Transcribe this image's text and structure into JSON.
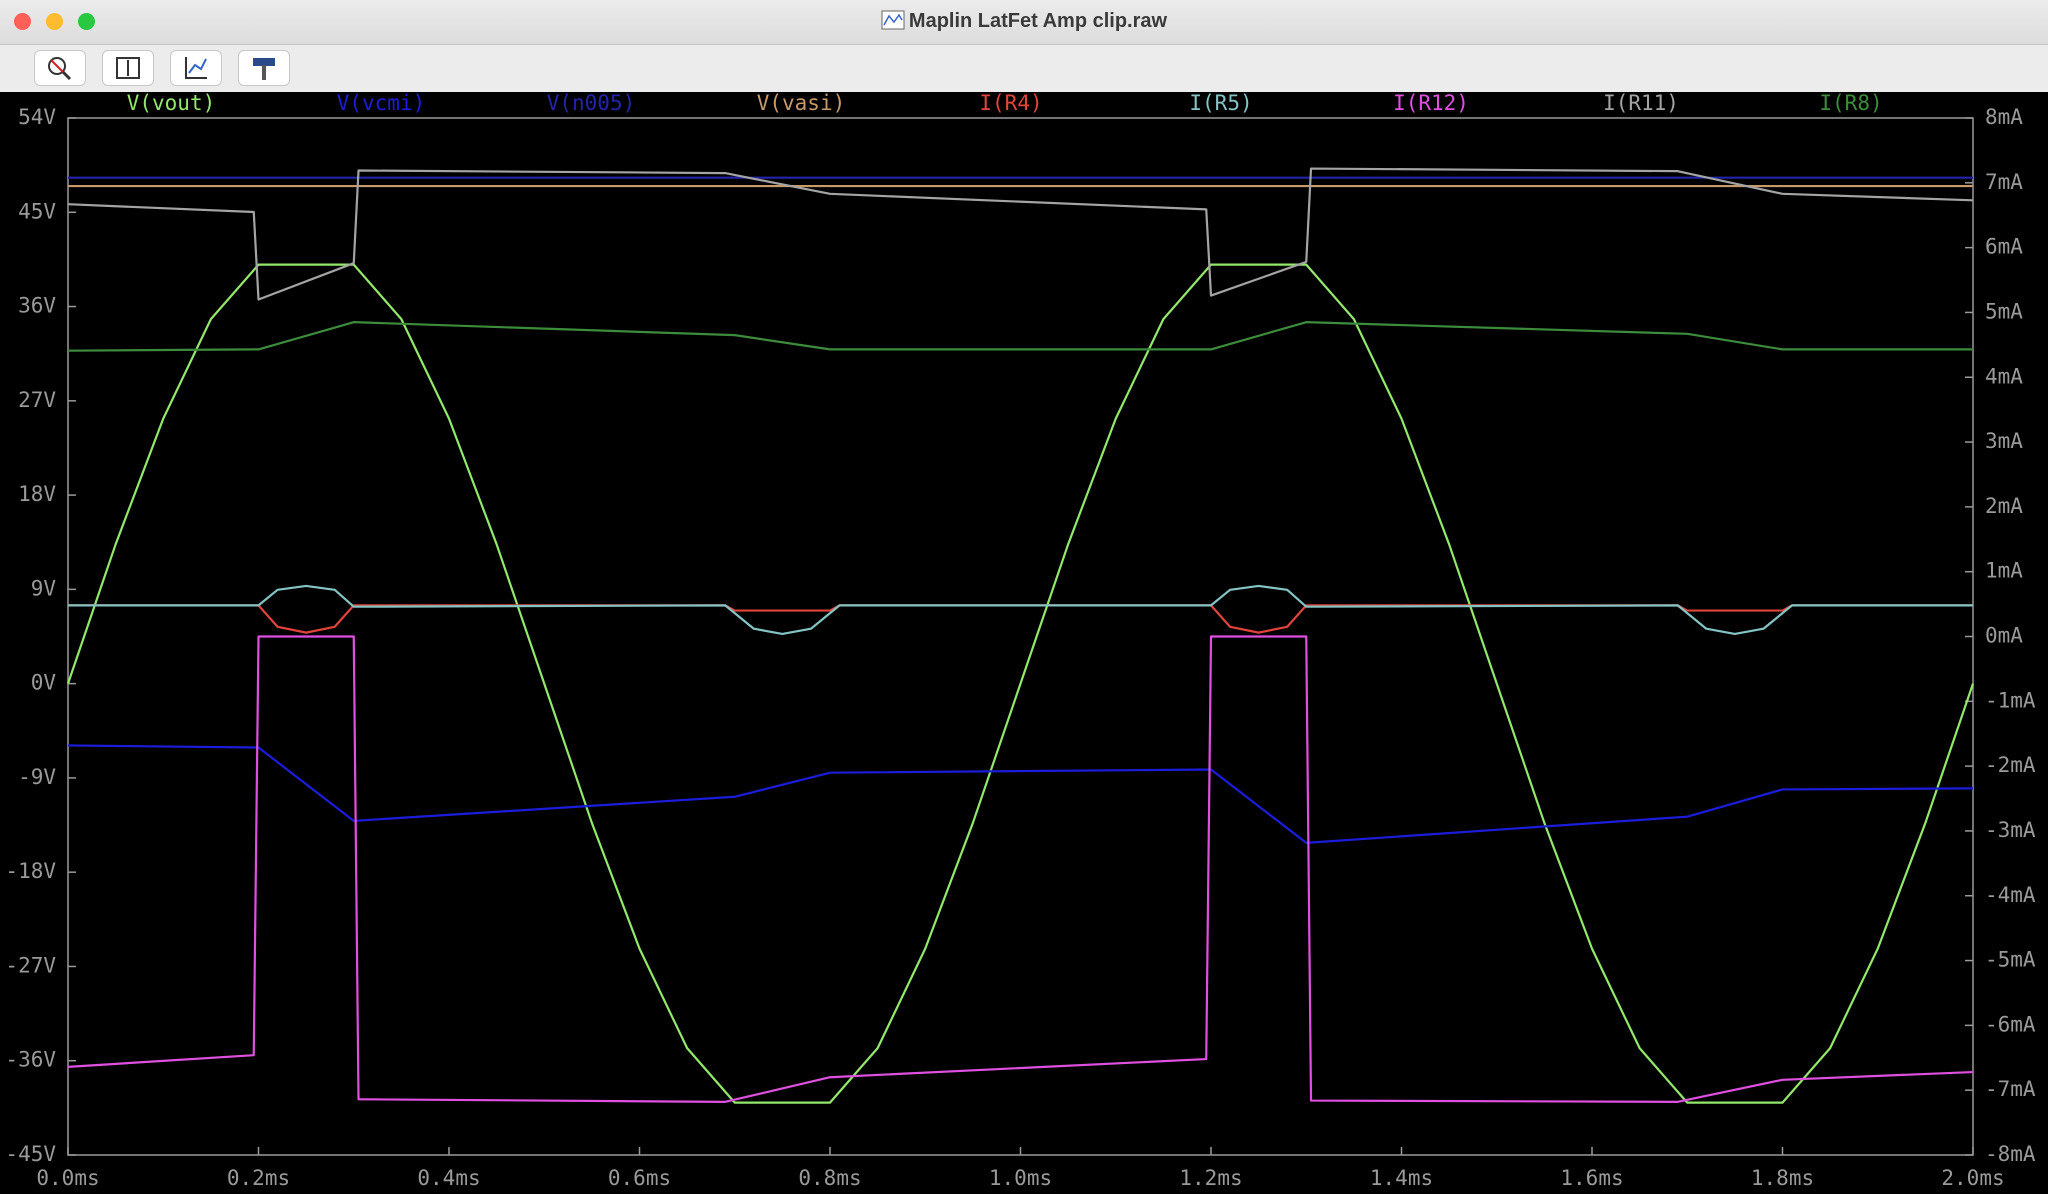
{
  "window": {
    "title": "Maplin LatFet Amp clip.raw"
  },
  "chart_data": {
    "type": "line",
    "xlim": [
      0,
      2
    ],
    "xticks": [
      {
        "value": 0,
        "label": "0.0ms"
      },
      {
        "value": 0.2,
        "label": "0.2ms"
      },
      {
        "value": 0.4,
        "label": "0.4ms"
      },
      {
        "value": 0.6,
        "label": "0.6ms"
      },
      {
        "value": 0.8,
        "label": "0.8ms"
      },
      {
        "value": 1.0,
        "label": "1.0ms"
      },
      {
        "value": 1.2,
        "label": "1.2ms"
      },
      {
        "value": 1.4,
        "label": "1.4ms"
      },
      {
        "value": 1.6,
        "label": "1.6ms"
      },
      {
        "value": 1.8,
        "label": "1.8ms"
      },
      {
        "value": 2.0,
        "label": "2.0ms"
      }
    ],
    "ylim": [
      -45,
      54
    ],
    "yticks": [
      {
        "value": 54,
        "label": "54V"
      },
      {
        "value": 45,
        "label": "45V"
      },
      {
        "value": 36,
        "label": "36V"
      },
      {
        "value": 27,
        "label": "27V"
      },
      {
        "value": 18,
        "label": "18V"
      },
      {
        "value": 9,
        "label": "9V"
      },
      {
        "value": 0,
        "label": "0V"
      },
      {
        "value": -9,
        "label": "-9V"
      },
      {
        "value": -18,
        "label": "-18V"
      },
      {
        "value": -27,
        "label": "-27V"
      },
      {
        "value": -36,
        "label": "-36V"
      },
      {
        "value": -45,
        "label": "-45V"
      }
    ],
    "y2lim": [
      -8,
      8
    ],
    "y2ticks": [
      {
        "value": 8,
        "label": "8mA"
      },
      {
        "value": 7,
        "label": "7mA"
      },
      {
        "value": 6,
        "label": "6mA"
      },
      {
        "value": 5,
        "label": "5mA"
      },
      {
        "value": 4,
        "label": "4mA"
      },
      {
        "value": 3,
        "label": "3mA"
      },
      {
        "value": 2,
        "label": "2mA"
      },
      {
        "value": 1,
        "label": "1mA"
      },
      {
        "value": 0,
        "label": "0mA"
      },
      {
        "value": -1,
        "label": "-1mA"
      },
      {
        "value": -2,
        "label": "-2mA"
      },
      {
        "value": -3,
        "label": "-3mA"
      },
      {
        "value": -4,
        "label": "-4mA"
      },
      {
        "value": -5,
        "label": "-5mA"
      },
      {
        "value": -6,
        "label": "-6mA"
      },
      {
        "value": -7,
        "label": "-7mA"
      },
      {
        "value": -8,
        "label": "-8mA"
      }
    ],
    "series": [
      {
        "name": "V(vout)",
        "color": "#93e86c",
        "x": [
          0,
          0.05,
          0.1,
          0.15,
          0.2,
          0.25,
          0.3,
          0.35,
          0.4,
          0.45,
          0.5,
          0.55,
          0.6,
          0.65,
          0.7,
          0.75,
          0.8,
          0.85,
          0.9,
          0.95,
          1.0,
          1.05,
          1.1,
          1.15,
          1.2,
          1.25,
          1.3,
          1.35,
          1.4,
          1.45,
          1.5,
          1.55,
          1.6,
          1.65,
          1.7,
          1.75,
          1.8,
          1.85,
          1.9,
          1.95,
          2.0
        ],
        "values": [
          0,
          13.3,
          25.3,
          34.8,
          40,
          40,
          40,
          34.8,
          25.3,
          13.3,
          0,
          -13.3,
          -25.3,
          -34.8,
          -40,
          -40,
          -40,
          -34.8,
          -25.3,
          -13.3,
          0,
          13.3,
          25.3,
          34.8,
          40,
          40,
          40,
          34.8,
          25.3,
          13.3,
          0,
          -13.3,
          -25.3,
          -34.8,
          -40,
          -40,
          -40,
          -34.8,
          -25.3,
          -13.3,
          0
        ]
      },
      {
        "name": "V(vcmi)",
        "color": "#1c1cdc",
        "x": [
          0,
          0.2,
          0.3,
          0.7,
          0.8,
          1.2,
          1.3,
          1.7,
          1.8,
          2.0
        ],
        "values": [
          -5.9,
          -6.1,
          -13.1,
          -10.8,
          -8.5,
          -8.2,
          -15.2,
          -12.7,
          -10.1,
          -10.0
        ]
      },
      {
        "name": "V(n005)",
        "color": "#2424a8",
        "x": [
          0,
          2.0
        ],
        "values": [
          48.3,
          48.3
        ]
      },
      {
        "name": "V(vasi)",
        "color": "#c89a6a",
        "x": [
          0,
          2.0
        ],
        "values": [
          47.5,
          47.5
        ]
      },
      {
        "name": "I(R4)",
        "color": "#e0443a",
        "axis": "y2",
        "x": [
          0,
          0.2,
          0.22,
          0.25,
          0.28,
          0.3,
          0.69,
          0.7,
          0.8,
          0.81,
          1.2,
          1.22,
          1.25,
          1.28,
          1.3,
          1.69,
          1.7,
          1.8,
          1.81,
          2.0
        ],
        "values": [
          0.48,
          0.48,
          0.15,
          0.06,
          0.15,
          0.48,
          0.48,
          0.4,
          0.4,
          0.48,
          0.48,
          0.15,
          0.06,
          0.15,
          0.48,
          0.48,
          0.4,
          0.4,
          0.48,
          0.48
        ]
      },
      {
        "name": "I(R5)",
        "color": "#84c4c4",
        "axis": "y2",
        "x": [
          0,
          0.2,
          0.22,
          0.25,
          0.28,
          0.3,
          0.69,
          0.72,
          0.75,
          0.78,
          0.81,
          1.2,
          1.22,
          1.25,
          1.28,
          1.3,
          1.69,
          1.72,
          1.75,
          1.78,
          1.81,
          2.0
        ],
        "values": [
          0.48,
          0.48,
          0.72,
          0.78,
          0.72,
          0.46,
          0.48,
          0.12,
          0.04,
          0.12,
          0.48,
          0.48,
          0.72,
          0.78,
          0.72,
          0.46,
          0.48,
          0.12,
          0.04,
          0.12,
          0.48,
          0.48
        ]
      },
      {
        "name": "I(R12)",
        "color": "#e050e0",
        "axis": "y2",
        "x": [
          0,
          0.195,
          0.2,
          0.3,
          0.305,
          0.69,
          0.8,
          1.195,
          1.2,
          1.3,
          1.305,
          1.69,
          1.8,
          2.0
        ],
        "values": [
          -6.64,
          -6.46,
          0,
          0,
          -7.14,
          -7.18,
          -6.8,
          -6.52,
          0,
          0,
          -7.16,
          -7.18,
          -6.84,
          -6.72
        ]
      },
      {
        "name": "I(R11)",
        "color": "#a4a4a4",
        "axis": "y2",
        "x": [
          0,
          0.195,
          0.2,
          0.3,
          0.305,
          0.69,
          0.8,
          1.195,
          1.2,
          1.3,
          1.305,
          1.69,
          1.8,
          2.0
        ],
        "values": [
          6.67,
          6.55,
          5.2,
          5.76,
          7.19,
          7.15,
          6.83,
          6.59,
          5.26,
          5.78,
          7.22,
          7.18,
          6.83,
          6.73
        ]
      },
      {
        "name": "I(R8)",
        "color": "#3c8c3c",
        "axis": "y2",
        "x": [
          0,
          0.2,
          0.3,
          0.7,
          0.8,
          1.2,
          1.3,
          1.7,
          1.8,
          2.0
        ],
        "values": [
          4.41,
          4.43,
          4.85,
          4.65,
          4.43,
          4.43,
          4.85,
          4.67,
          4.43,
          4.43
        ]
      }
    ]
  }
}
